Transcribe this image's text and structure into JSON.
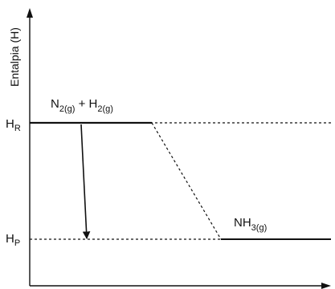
{
  "axis": {
    "y_label": "Entalpia (H)"
  },
  "levels": {
    "reactants": {
      "tick_label": "H",
      "tick_sub": "R",
      "formula": [
        {
          "text": "N",
          "sub": "2(g)"
        },
        {
          "text": " + H",
          "sub": "2(g)"
        }
      ]
    },
    "products": {
      "tick_label": "H",
      "tick_sub": "P",
      "formula": [
        {
          "text": "NH",
          "sub": "3(g)"
        }
      ]
    }
  },
  "colors": {
    "ink": "#111111",
    "background": "#ffffff"
  }
}
